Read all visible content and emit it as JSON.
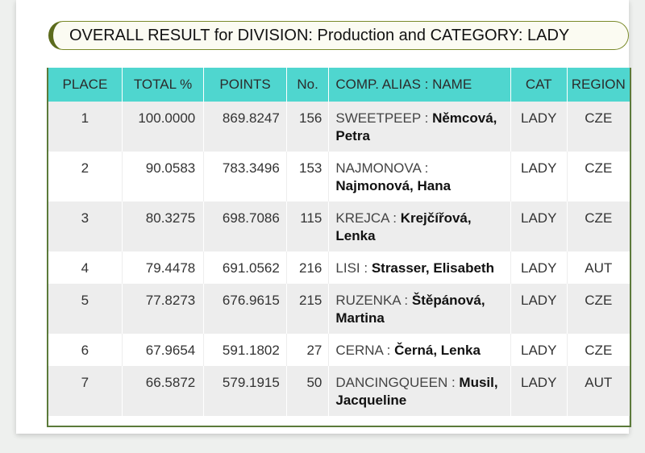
{
  "title": "OVERALL RESULT for DIVISION: Production and CATEGORY: LADY",
  "columns": {
    "place": "PLACE",
    "total": "TOTAL %",
    "points": "POINTS",
    "no": "No.",
    "name": "COMP. ALIAS : NAME",
    "cat": "CAT",
    "region": "REGION"
  },
  "rows": [
    {
      "place": "1",
      "total": "100.0000",
      "points": "869.8247",
      "no": "156",
      "alias": "SWEETPEEP : ",
      "name": "Němcová, Petra",
      "cat": "LADY",
      "region": "CZE"
    },
    {
      "place": "2",
      "total": "90.0583",
      "points": "783.3496",
      "no": "153",
      "alias": "NAJMONOVA : ",
      "name": "Najmonová, Hana",
      "cat": "LADY",
      "region": "CZE"
    },
    {
      "place": "3",
      "total": "80.3275",
      "points": "698.7086",
      "no": "115",
      "alias": "KREJCA : ",
      "name": "Krejčířová, Lenka",
      "cat": "LADY",
      "region": "CZE"
    },
    {
      "place": "4",
      "total": "79.4478",
      "points": "691.0562",
      "no": "216",
      "alias": "LISI : ",
      "name": "Strasser, Elisabeth",
      "cat": "LADY",
      "region": "AUT"
    },
    {
      "place": "5",
      "total": "77.8273",
      "points": "676.9615",
      "no": "215",
      "alias": "RUZENKA : ",
      "name": "Štěpánová, Martina",
      "cat": "LADY",
      "region": "CZE"
    },
    {
      "place": "6",
      "total": "67.9654",
      "points": "591.1802",
      "no": "27",
      "alias": "CERNA : ",
      "name": "Černá, Lenka",
      "cat": "LADY",
      "region": "CZE"
    },
    {
      "place": "7",
      "total": "66.5872",
      "points": "579.1915",
      "no": "50",
      "alias": "DANCINGQUEEN : ",
      "name": "Musil, Jacqueline",
      "cat": "LADY",
      "region": "AUT"
    }
  ]
}
